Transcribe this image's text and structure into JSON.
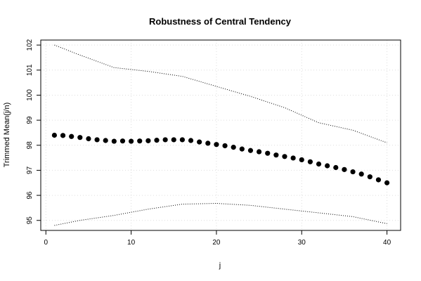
{
  "chart_data": {
    "type": "scatter",
    "title": "Robustness of Central Tendency",
    "xlabel": "j",
    "ylabel": "Trimmed Mean(j/n)",
    "xlim": [
      -0.6,
      41.6
    ],
    "ylim": [
      94.6,
      102.2
    ],
    "x_ticks": [
      0,
      10,
      20,
      30,
      40
    ],
    "y_ticks": [
      95,
      96,
      97,
      98,
      99,
      100,
      101,
      102
    ],
    "grid": true,
    "legend": "none",
    "series": [
      {
        "role": "mean",
        "style": "points",
        "color": "#000000",
        "x": [
          1,
          2,
          3,
          4,
          5,
          6,
          7,
          8,
          9,
          10,
          11,
          12,
          13,
          14,
          15,
          16,
          17,
          18,
          19,
          20,
          21,
          22,
          23,
          24,
          25,
          26,
          27,
          28,
          29,
          30,
          31,
          32,
          33,
          34,
          35,
          36,
          37,
          38,
          39,
          40
        ],
        "values": [
          98.4,
          98.39,
          98.35,
          98.31,
          98.26,
          98.22,
          98.19,
          98.16,
          98.17,
          98.16,
          98.17,
          98.18,
          98.2,
          98.22,
          98.22,
          98.22,
          98.19,
          98.13,
          98.08,
          98.03,
          97.98,
          97.92,
          97.85,
          97.79,
          97.74,
          97.68,
          97.61,
          97.55,
          97.49,
          97.42,
          97.34,
          97.25,
          97.18,
          97.11,
          97.03,
          96.94,
          96.85,
          96.74,
          96.62,
          96.5
        ]
      },
      {
        "role": "upper",
        "style": "dotted-line",
        "color": "#000000",
        "x": [
          1,
          4,
          8,
          12,
          16,
          20,
          24,
          28,
          32,
          36,
          40
        ],
        "values": [
          102.0,
          101.6,
          101.1,
          100.95,
          100.75,
          100.35,
          99.95,
          99.5,
          98.9,
          98.6,
          98.1
        ]
      },
      {
        "role": "lower",
        "style": "dotted-line",
        "color": "#000000",
        "x": [
          1,
          4,
          8,
          12,
          16,
          20,
          24,
          28,
          32,
          36,
          40
        ],
        "values": [
          94.8,
          95.0,
          95.2,
          95.45,
          95.65,
          95.68,
          95.6,
          95.45,
          95.3,
          95.15,
          94.87
        ]
      }
    ]
  }
}
